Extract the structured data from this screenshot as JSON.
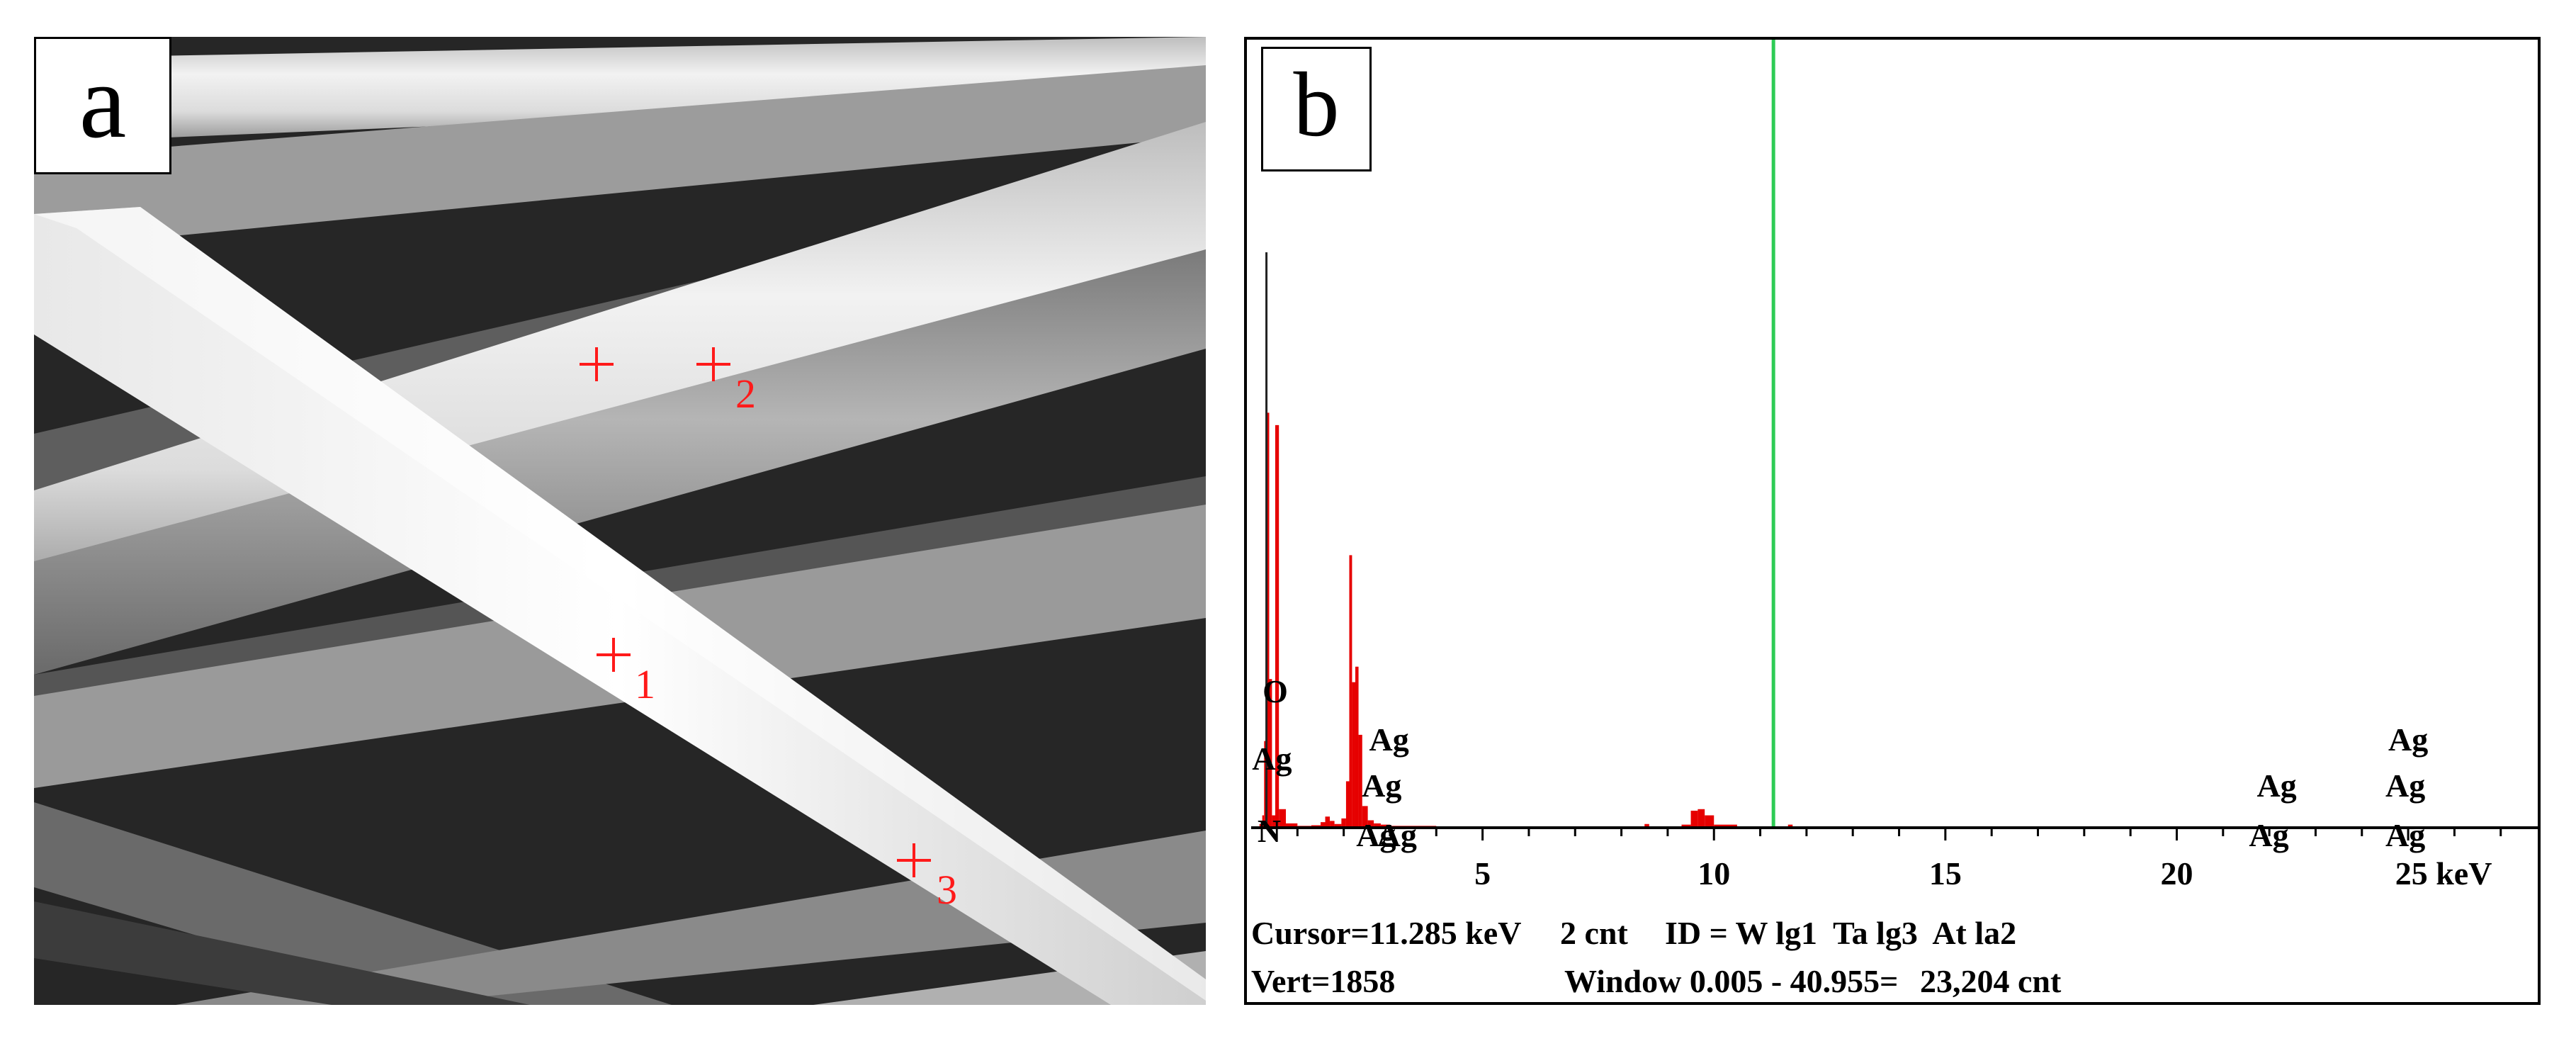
{
  "panel_a": {
    "label": "a",
    "markers": [
      {
        "id": "1",
        "label": "1"
      },
      {
        "id": "2",
        "label": "2"
      },
      {
        "id": "3",
        "label": "3"
      }
    ],
    "marker_color": "#ff1a1a"
  },
  "panel_b": {
    "label": "b",
    "status": {
      "cursor": "Cursor=11.285 keV",
      "counts": "2 cnt",
      "id": "ID = W lg1  Ta lg3  At la2",
      "vert": "Vert=1858",
      "window": "Window 0.005 - 40.955=",
      "total": "23,204 cnt"
    },
    "colors": {
      "spectrum": "#e60000",
      "cursor": "#2ecc55",
      "axis": "#000000"
    }
  },
  "chart_data": {
    "type": "area",
    "xlabel": "keV",
    "xlim": [
      0,
      27.8
    ],
    "ylim": [
      0,
      1858
    ],
    "grid": false,
    "x_tick_labels": [
      "5",
      "10",
      "15",
      "20",
      "25 keV"
    ],
    "x_ticks": [
      5,
      10,
      15,
      20,
      25
    ],
    "cursor_kev": 11.285,
    "series": [
      {
        "x": [
          0.1,
          0.18,
          0.24,
          0.28,
          0.33,
          0.39,
          0.45,
          0.52,
          0.6,
          0.75,
          1.0,
          1.3,
          1.5,
          1.6,
          1.7,
          1.8,
          1.95,
          2.05,
          2.12,
          2.18,
          2.25,
          2.32,
          2.4,
          2.52,
          2.65,
          2.8,
          3.0,
          4.0,
          6.0,
          8.4,
          8.5,
          8.6,
          9.3,
          9.5,
          9.65,
          9.8,
          10.0,
          10.5,
          11.5,
          11.6,
          11.7,
          12.5,
          15.0,
          20.0,
          25.0,
          27.8
        ],
        "y": [
          0,
          12,
          40,
          280,
          1340,
          480,
          40,
          1300,
          60,
          14,
          6,
          8,
          18,
          36,
          22,
          12,
          30,
          150,
          880,
          470,
          520,
          300,
          70,
          24,
          14,
          10,
          6,
          4,
          3,
          3,
          12,
          3,
          10,
          55,
          60,
          40,
          10,
          3,
          3,
          10,
          3,
          2,
          2,
          2,
          2,
          1
        ]
      }
    ],
    "annotations": [
      {
        "text": "O",
        "x": 0.52
      },
      {
        "text": "Ag",
        "x": 0.45
      },
      {
        "text": "N",
        "x": 0.39
      },
      {
        "text": "Ag",
        "x": 2.98
      },
      {
        "text": "Ag",
        "x": 2.82
      },
      {
        "text": "Ag",
        "x": 2.7
      },
      {
        "text": "Ag",
        "x": 3.15
      },
      {
        "text": "Ag",
        "x": 22.16
      },
      {
        "text": "Ag",
        "x": 21.99
      },
      {
        "text": "Ag",
        "x": 25.0
      },
      {
        "text": "Ag",
        "x": 24.94
      },
      {
        "text": "Ag",
        "x": 24.94
      }
    ]
  }
}
